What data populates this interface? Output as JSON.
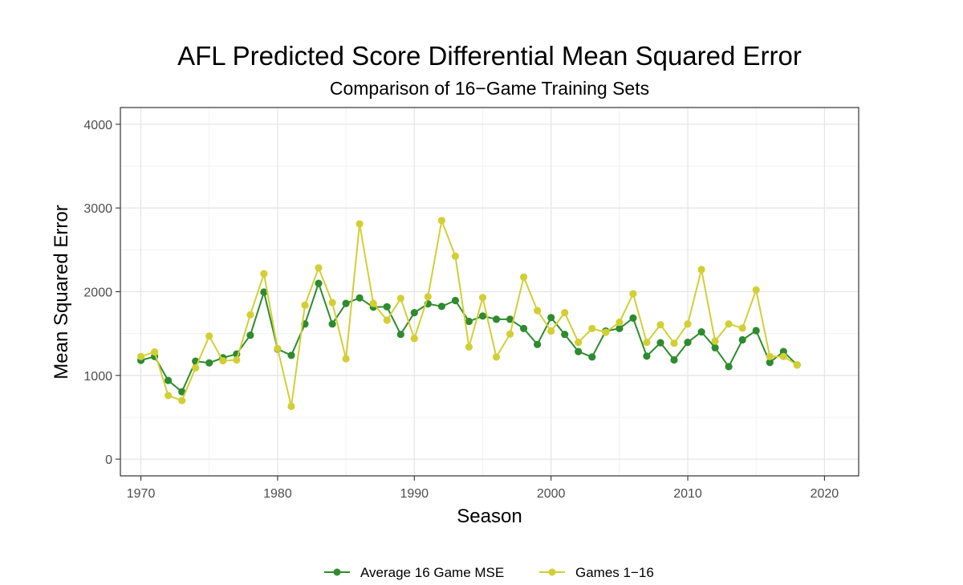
{
  "chart_data": {
    "type": "line",
    "title": "AFL Predicted Score Differential Mean Squared Error",
    "subtitle": "Comparison of 16−Game Training Sets",
    "xlabel": "Season",
    "ylabel": "Mean Squared Error",
    "xlim": [
      1968.5,
      2022.5
    ],
    "ylim": [
      -200,
      4200
    ],
    "x_ticks": [
      1970,
      1980,
      1990,
      2000,
      2010,
      2020
    ],
    "x_tick_labels": [
      "1970",
      "1980",
      "1990",
      "2000",
      "2010",
      "2020"
    ],
    "y_ticks": [
      0,
      1000,
      2000,
      3000,
      4000
    ],
    "y_tick_labels": [
      "0",
      "1000",
      "2000",
      "3000",
      "4000"
    ],
    "grid": true,
    "legend_position": "bottom",
    "x": [
      1970,
      1971,
      1972,
      1973,
      1974,
      1975,
      1976,
      1977,
      1978,
      1979,
      1980,
      1981,
      1982,
      1983,
      1984,
      1985,
      1986,
      1987,
      1988,
      1989,
      1990,
      1991,
      1992,
      1993,
      1994,
      1995,
      1996,
      1997,
      1998,
      1999,
      2000,
      2001,
      2002,
      2003,
      2004,
      2005,
      2006,
      2007,
      2008,
      2009,
      2010,
      2011,
      2012,
      2013,
      2014,
      2015,
      2016,
      2017,
      2018
    ],
    "series": [
      {
        "name": "Average 16 Game MSE",
        "color": "#2e8b2e",
        "values": [
          1180,
          1225,
          940,
          805,
          1170,
          1150,
          1210,
          1255,
          1480,
          1995,
          1315,
          1240,
          1615,
          2100,
          1615,
          1860,
          1925,
          1815,
          1820,
          1490,
          1750,
          1855,
          1825,
          1895,
          1645,
          1710,
          1670,
          1670,
          1560,
          1370,
          1690,
          1490,
          1285,
          1220,
          1530,
          1560,
          1685,
          1230,
          1390,
          1185,
          1395,
          1520,
          1330,
          1105,
          1425,
          1535,
          1155,
          1285,
          1125
        ]
      },
      {
        "name": "Games 1−16",
        "color": "#d2cf34",
        "values": [
          1225,
          1280,
          760,
          700,
          1090,
          1470,
          1175,
          1185,
          1725,
          2215,
          1320,
          630,
          1840,
          2285,
          1870,
          1200,
          2810,
          1860,
          1660,
          1920,
          1440,
          1940,
          2850,
          2425,
          1340,
          1930,
          1220,
          1495,
          2175,
          1775,
          1530,
          1750,
          1395,
          1560,
          1515,
          1635,
          1975,
          1395,
          1605,
          1385,
          1615,
          2265,
          1410,
          1615,
          1565,
          2020,
          1225,
          1225,
          1125
        ]
      }
    ]
  }
}
